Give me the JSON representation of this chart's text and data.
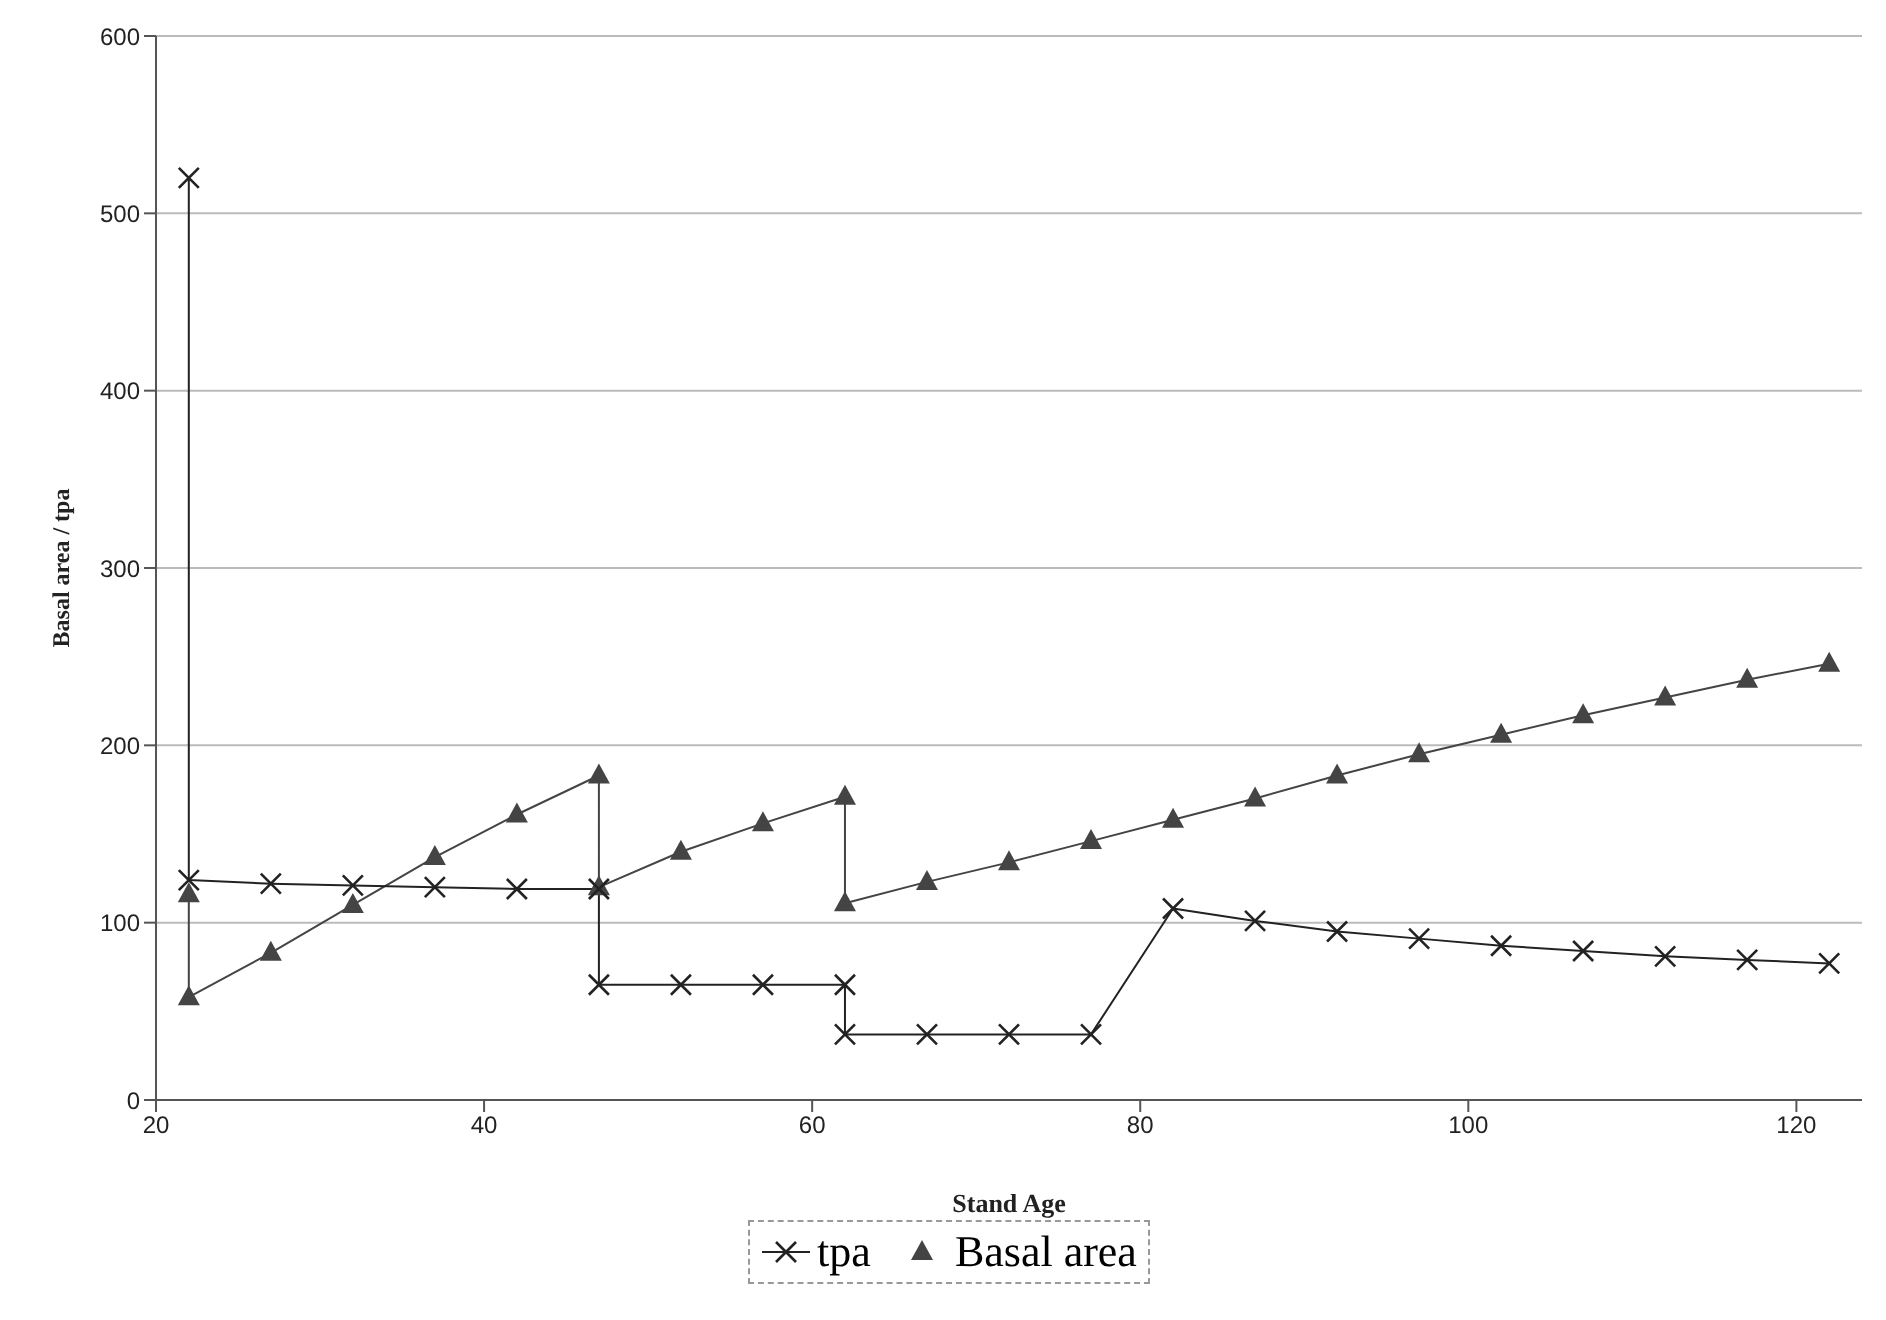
{
  "chart_data": {
    "type": "line",
    "xlabel": "Stand Age",
    "ylabel": "Basal area / tpa",
    "xlim": [
      20,
      124
    ],
    "xticks": [
      20,
      40,
      60,
      80,
      100,
      120
    ],
    "ylim": [
      0,
      600
    ],
    "yticks": [
      0,
      100,
      200,
      300,
      400,
      500,
      600
    ],
    "grid": "y",
    "legend": "bottom",
    "series": [
      {
        "name": "tpa",
        "color": "#222222",
        "marker": "cross",
        "x": [
          22,
          22,
          27,
          32,
          37,
          42,
          47,
          47,
          52,
          57,
          62,
          62,
          67,
          72,
          77,
          82,
          87,
          92,
          97,
          102,
          107,
          112,
          117,
          122
        ],
        "values": [
          520,
          124,
          122,
          121,
          120,
          119,
          119,
          65,
          65,
          65,
          65,
          37,
          37,
          37,
          37,
          108,
          101,
          95,
          91,
          87,
          84,
          81,
          79,
          77
        ]
      },
      {
        "name": "Basal area",
        "color": "#444444",
        "marker": "triangle",
        "x": [
          22,
          22,
          27,
          32,
          37,
          42,
          47,
          47,
          52,
          57,
          62,
          62,
          67,
          72,
          77,
          82,
          87,
          92,
          97,
          102,
          107,
          112,
          117,
          122
        ],
        "values": [
          116,
          58,
          83,
          110,
          137,
          161,
          183,
          120,
          140,
          156,
          171,
          111,
          123,
          134,
          146,
          158,
          170,
          183,
          195,
          206,
          217,
          227,
          237,
          246
        ]
      }
    ]
  }
}
